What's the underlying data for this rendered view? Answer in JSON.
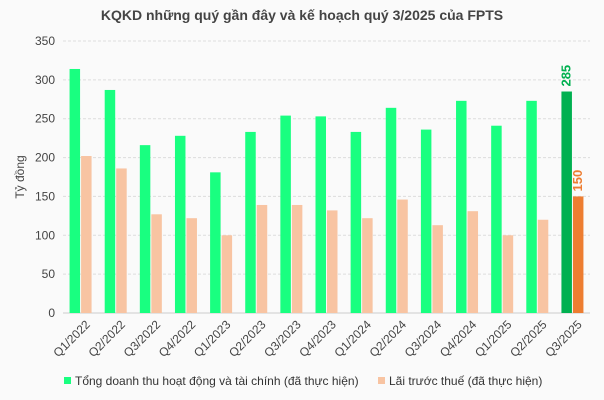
{
  "chart_data": {
    "type": "bar",
    "title": "KQKD những quý gần đây và kế hoạch quý 3/2025 của FPTS",
    "ylabel": "Tỷ đồng",
    "xlabel": "",
    "ylim": [
      0,
      350
    ],
    "yticks": [
      0,
      50,
      100,
      150,
      200,
      250,
      300,
      350
    ],
    "grid": true,
    "legend_position": "bottom",
    "categories": [
      "Q1/2022",
      "Q2/2022",
      "Q3/2022",
      "Q4/2022",
      "Q1/2023",
      "Q2/2023",
      "Q3/2023",
      "Q4/2023",
      "Q1/2024",
      "Q2/2024",
      "Q3/2024",
      "Q4/2024",
      "Q1/2025",
      "Q2/2025",
      "Q3/2025"
    ],
    "series": [
      {
        "name": "Tổng doanh thu hoạt động và tài chính (đã thực hiện)",
        "color": "#19ff80",
        "highlight_color": "#00b050",
        "values": [
          314,
          287,
          216,
          228,
          181,
          233,
          254,
          253,
          233,
          264,
          236,
          273,
          241,
          273,
          285
        ]
      },
      {
        "name": "Lãi trước thuế (đã thực hiện)",
        "color": "#f8c4a2",
        "highlight_color": "#ed7d31",
        "values": [
          202,
          186,
          127,
          122,
          100,
          139,
          139,
          132,
          122,
          146,
          113,
          131,
          100,
          120,
          150
        ]
      }
    ],
    "highlighted_category": "Q3/2025",
    "data_labels": {
      "Q3/2025": [
        "285",
        "150"
      ]
    }
  }
}
